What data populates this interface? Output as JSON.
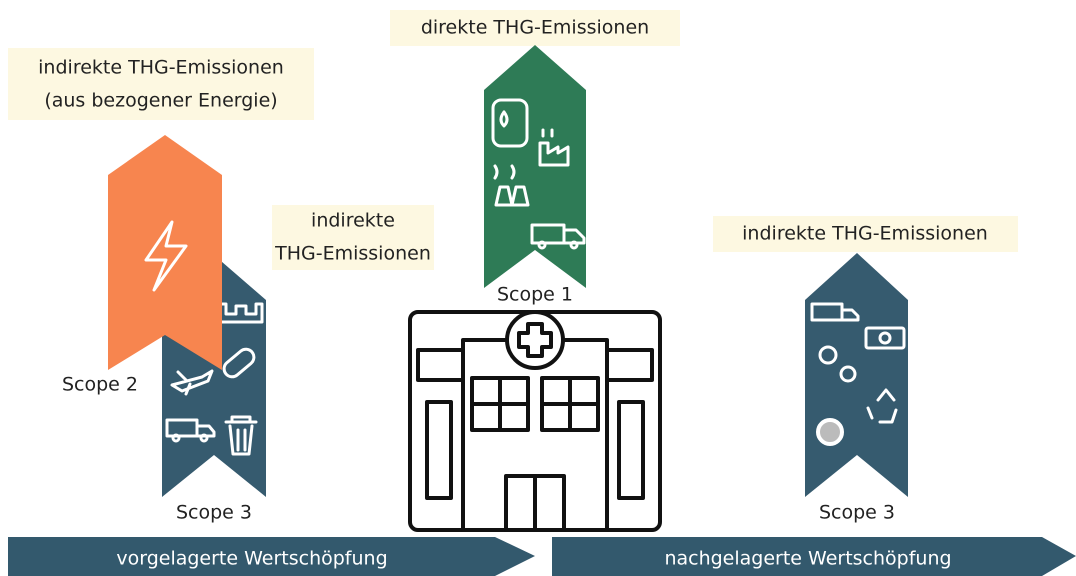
{
  "scopes": [
    {
      "label": "Scope 2",
      "description": [
        "indirekte THG-Emissionen",
        "(aus bezogener Energie)"
      ]
    },
    {
      "label": "Scope 3",
      "description": [
        "indirekte",
        "THG-Emissionen"
      ]
    },
    {
      "label": "Scope 1",
      "description": [
        "direkte THG-Emissionen"
      ]
    },
    {
      "label": "Scope 3",
      "description": [
        "indirekte THG-Emissionen"
      ]
    }
  ],
  "value_chain": [
    "vorgelagerte Wertschöpfung",
    "nachgelagerte Wertschöpfung"
  ]
}
